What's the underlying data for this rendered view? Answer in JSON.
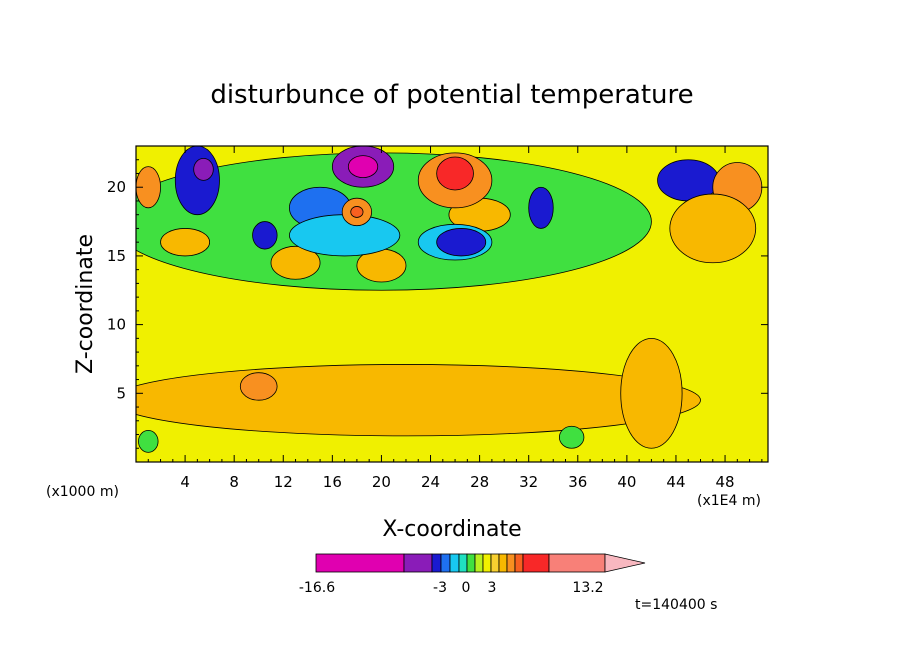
{
  "chart_data": {
    "type": "heatmap",
    "title": "disturbunce of potential temperature",
    "xlabel": "X-coordinate",
    "ylabel": "Z-coordinate",
    "x_unit_left": "(x1000 m)",
    "x_unit_right": "(x1E4 m)",
    "xlim": [
      0,
      51.5
    ],
    "ylim": [
      0,
      23
    ],
    "x_ticks": [
      4,
      8,
      12,
      16,
      20,
      24,
      28,
      32,
      36,
      40,
      44,
      48
    ],
    "y_ticks": [
      5,
      10,
      15,
      20
    ],
    "time_label": "t=140400 s",
    "colorbar": {
      "labels": [
        "-16.6",
        "-3",
        "0",
        "3",
        "13.2"
      ],
      "colors": [
        "#e000b0",
        "#8a1cb8",
        "#1a1ad0",
        "#1e70f0",
        "#18c8f0",
        "#20e0c0",
        "#40e040",
        "#b8f020",
        "#f0f000",
        "#f8d030",
        "#f8b800",
        "#f89020",
        "#f86020",
        "#f82828",
        "#f88078",
        "#f8b8c0"
      ]
    },
    "regions": [
      {
        "x": 22,
        "y": 4.5,
        "rx": 24,
        "ry": 2.6,
        "level": "pos1"
      },
      {
        "x": 42,
        "y": 5,
        "rx": 2.5,
        "ry": 4,
        "level": "pos1"
      },
      {
        "x": 10,
        "y": 5.5,
        "rx": 1.5,
        "ry": 1,
        "level": "pos2"
      },
      {
        "x": 20,
        "y": 17.5,
        "rx": 22,
        "ry": 5,
        "level": "zero"
      },
      {
        "x": 4,
        "y": 16,
        "rx": 2,
        "ry": 1,
        "level": "pos1"
      },
      {
        "x": 13,
        "y": 14.5,
        "rx": 2,
        "ry": 1.2,
        "level": "pos1"
      },
      {
        "x": 20,
        "y": 14.3,
        "rx": 2,
        "ry": 1.2,
        "level": "pos1"
      },
      {
        "x": 28,
        "y": 18,
        "rx": 2.5,
        "ry": 1.2,
        "level": "pos1"
      },
      {
        "x": 15,
        "y": 18.5,
        "rx": 2.5,
        "ry": 1.5,
        "level": "neg2"
      },
      {
        "x": 17,
        "y": 16.5,
        "rx": 4.5,
        "ry": 1.5,
        "level": "neg1"
      },
      {
        "x": 26,
        "y": 16,
        "rx": 3,
        "ry": 1.3,
        "level": "neg1"
      },
      {
        "x": 26.5,
        "y": 16,
        "rx": 2,
        "ry": 1,
        "level": "neg3"
      },
      {
        "x": 10.5,
        "y": 16.5,
        "rx": 1,
        "ry": 1,
        "level": "neg3"
      },
      {
        "x": 5,
        "y": 20.5,
        "rx": 1.8,
        "ry": 2.5,
        "level": "neg3"
      },
      {
        "x": 5.5,
        "y": 21.3,
        "rx": 0.8,
        "ry": 0.8,
        "level": "neg5"
      },
      {
        "x": 18.5,
        "y": 21.5,
        "rx": 2.5,
        "ry": 1.5,
        "level": "neg5"
      },
      {
        "x": 18.5,
        "y": 21.5,
        "rx": 1.2,
        "ry": 0.8,
        "level": "neg6"
      },
      {
        "x": 18,
        "y": 18.2,
        "rx": 1.2,
        "ry": 1,
        "level": "pos2"
      },
      {
        "x": 18,
        "y": 18.2,
        "rx": 0.5,
        "ry": 0.4,
        "level": "pos3"
      },
      {
        "x": 26,
        "y": 20.5,
        "rx": 3,
        "ry": 2,
        "level": "pos2"
      },
      {
        "x": 26,
        "y": 21,
        "rx": 1.5,
        "ry": 1.2,
        "level": "pos4"
      },
      {
        "x": 33,
        "y": 18.5,
        "rx": 1,
        "ry": 1.5,
        "level": "neg3"
      },
      {
        "x": 45,
        "y": 20.5,
        "rx": 2.5,
        "ry": 1.5,
        "level": "neg3"
      },
      {
        "x": 49,
        "y": 20,
        "rx": 2,
        "ry": 1.8,
        "level": "pos2"
      },
      {
        "x": 47,
        "y": 17,
        "rx": 3.5,
        "ry": 2.5,
        "level": "pos1"
      },
      {
        "x": 1,
        "y": 20,
        "rx": 1,
        "ry": 1.5,
        "level": "pos2"
      },
      {
        "x": 1,
        "y": 1.5,
        "rx": 0.8,
        "ry": 0.8,
        "level": "zero"
      },
      {
        "x": 35.5,
        "y": 1.8,
        "rx": 1,
        "ry": 0.8,
        "level": "zero"
      }
    ]
  }
}
